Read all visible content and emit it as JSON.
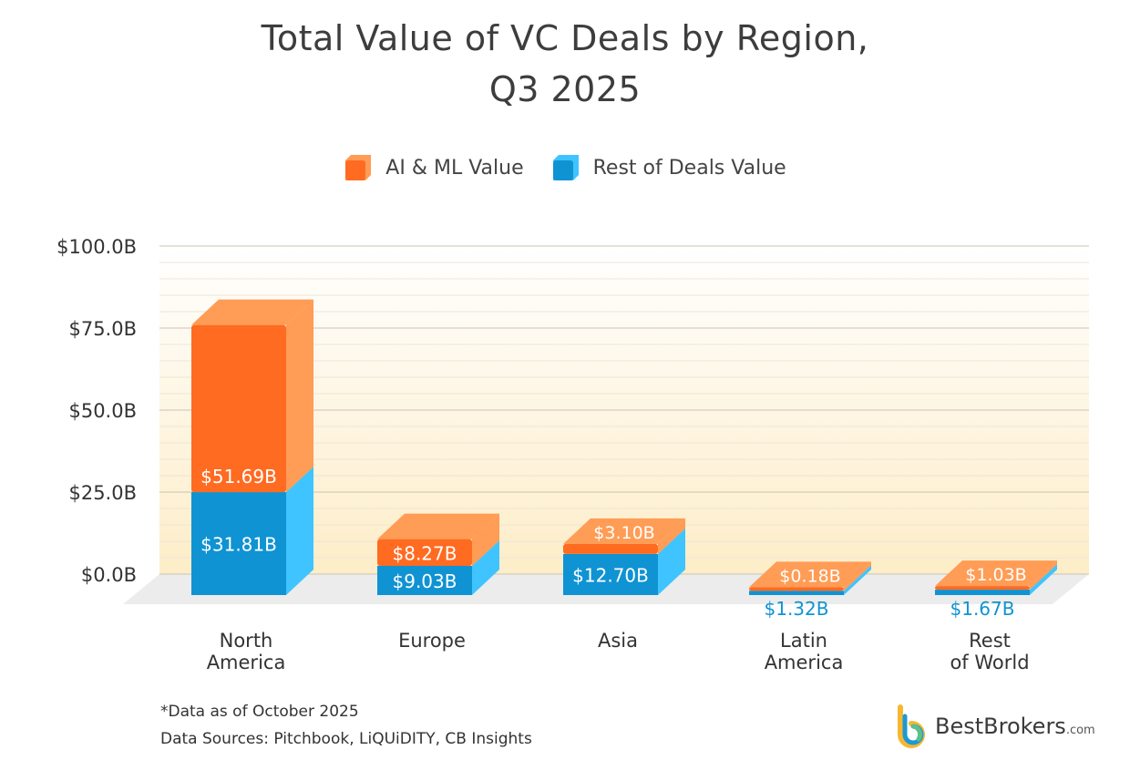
{
  "title_line1": "Total Value of VC Deals by Region,",
  "title_line2": "Q3 2025",
  "footnote": "*Data as of October 2025",
  "sources": "Data Sources: Pitchbook, LiQUiDITY, CB Insights",
  "logo": {
    "name": "BestBrokers",
    "suffix": ".com"
  },
  "colors": {
    "ai_front": "#ff6b21",
    "ai_side": "#ff9c55",
    "rest_front": "#0f93d3",
    "rest_side": "#40c4ff",
    "floor": "#ececec",
    "grid_major": "#c9c3b6",
    "grid_minor": "#ece6d6"
  },
  "chart_data": {
    "type": "bar",
    "stacked": true,
    "style": "3d",
    "categories": [
      [
        "North",
        "America"
      ],
      [
        "Europe"
      ],
      [
        "Asia"
      ],
      [
        "Latin",
        "America"
      ],
      [
        "Rest",
        "of World"
      ]
    ],
    "series": [
      {
        "name": "Rest of Deals Value",
        "values": [
          31.81,
          9.03,
          12.7,
          1.32,
          1.67
        ],
        "labels": [
          "$31.81B",
          "$9.03B",
          "$12.70B",
          "$1.32B",
          "$1.67B"
        ]
      },
      {
        "name": "AI & ML Value",
        "values": [
          51.69,
          8.27,
          3.1,
          0.18,
          1.03
        ],
        "labels": [
          "$51.69B",
          "$8.27B",
          "$3.10B",
          "$0.18B",
          "$1.03B"
        ]
      }
    ],
    "legend": [
      "AI & ML Value",
      "Rest of Deals Value"
    ],
    "legend_position": "top",
    "ylim": [
      0,
      100
    ],
    "yticks": [
      0,
      25,
      50,
      75,
      100
    ],
    "ytick_labels": [
      "$0.0B",
      "$25.0B",
      "$50.0B",
      "$75.0B",
      "$100.0B"
    ],
    "grid": true
  }
}
